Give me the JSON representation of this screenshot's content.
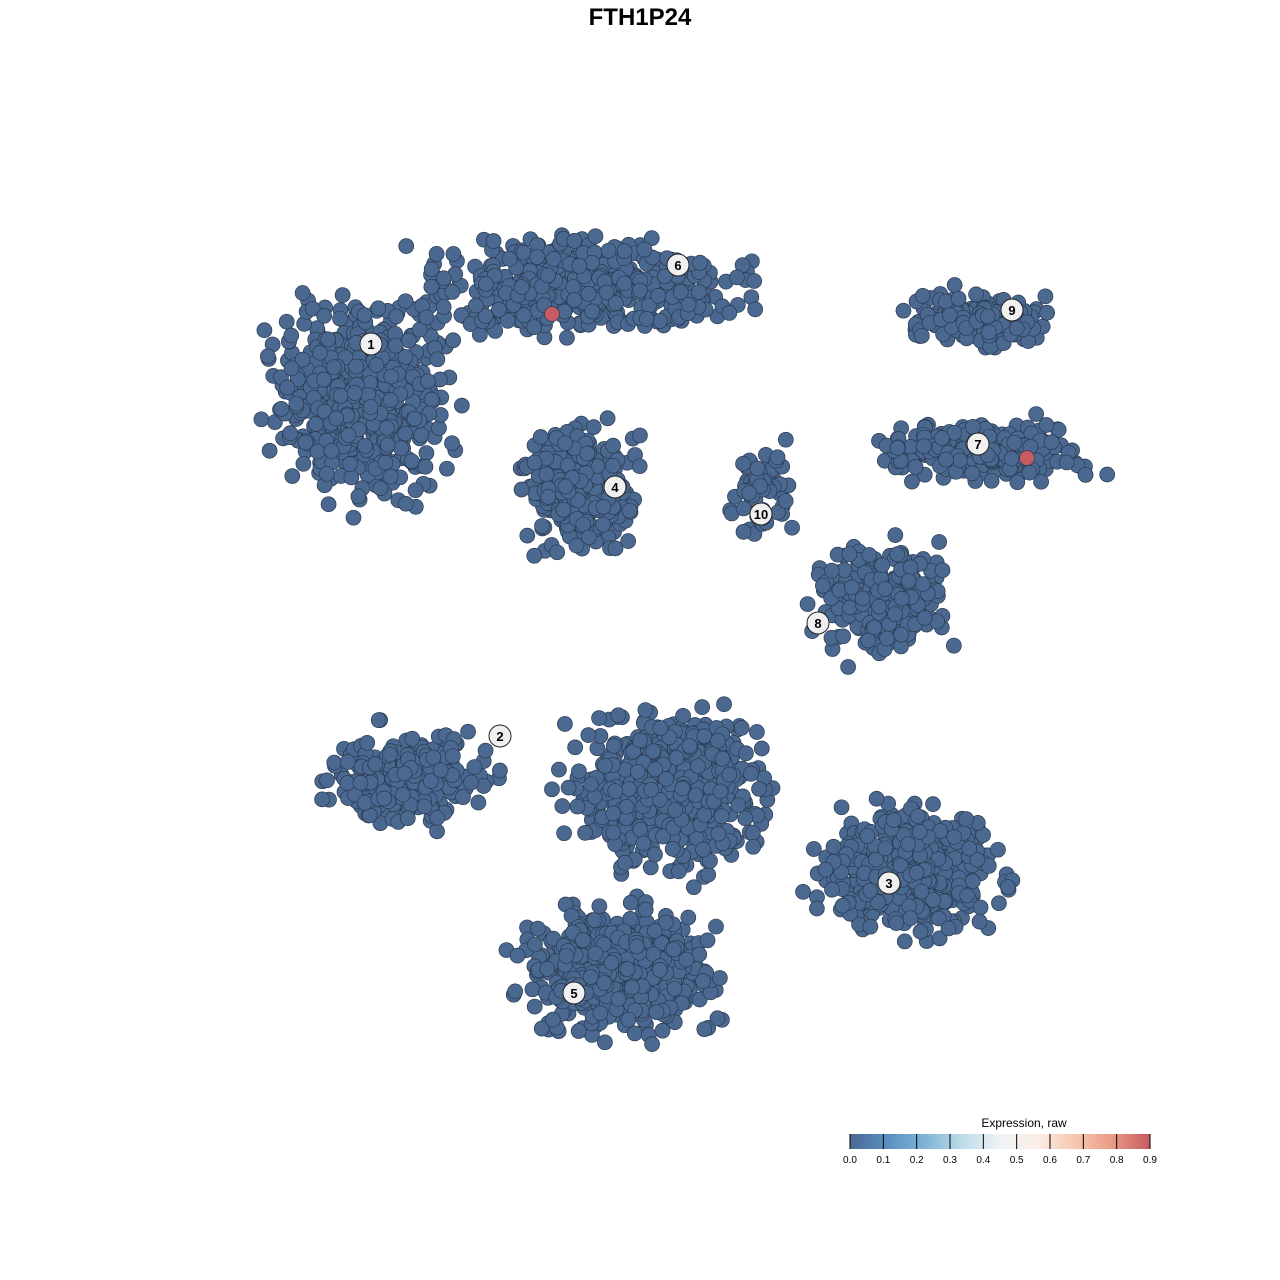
{
  "chart_data": {
    "type": "scatter",
    "title": "FTH1P24",
    "xlabel": "",
    "ylabel": "",
    "xlim": [
      -45,
      50
    ],
    "ylim": [
      -46,
      46
    ],
    "grid": false,
    "point_color_default": "#4a6890",
    "cell_groups": [
      {
        "label": "1",
        "center": [
          -28,
          24
        ],
        "spread": [
          11,
          12
        ],
        "n": 650,
        "label_pos": [
          -26.9,
          29.6
        ]
      },
      {
        "label": "6",
        "center": [
          -6,
          35.5
        ],
        "spread": [
          20,
          6
        ],
        "n": 550,
        "label_pos": [
          3.8,
          37.5
        ]
      },
      {
        "label": "4",
        "center": [
          -6,
          15
        ],
        "spread": [
          7,
          8
        ],
        "n": 330,
        "label_pos": [
          -2.5,
          15.3
        ]
      },
      {
        "label": "10",
        "center": [
          12,
          15
        ],
        "spread": [
          4,
          6
        ],
        "n": 70,
        "label_pos": [
          12.1,
          12.6
        ]
      },
      {
        "label": "9",
        "center": [
          34,
          32
        ],
        "spread": [
          10,
          4
        ],
        "n": 160,
        "label_pos": [
          37.2,
          33
        ]
      },
      {
        "label": "7",
        "center": [
          34,
          19
        ],
        "spread": [
          14,
          4
        ],
        "n": 260,
        "label_pos": [
          33.8,
          19.6
        ]
      },
      {
        "label": "8",
        "center": [
          24,
          4
        ],
        "spread": [
          8,
          7
        ],
        "n": 260,
        "label_pos": [
          17.8,
          1.7
        ]
      },
      {
        "label": "2",
        "center": [
          -23,
          -14
        ],
        "spread": [
          10,
          6
        ],
        "n": 300,
        "label_pos": [
          -14,
          -9.6
        ]
      },
      {
        "label": "5",
        "center": [
          -2,
          -33
        ],
        "spread": [
          12,
          8
        ],
        "n": 600,
        "label_pos": [
          -6.6,
          -35.3
        ]
      },
      {
        "label": "3",
        "center": [
          27,
          -23
        ],
        "spread": [
          12,
          8
        ],
        "n": 520,
        "label_pos": [
          24.9,
          -24.3
        ]
      },
      {
        "label": "",
        "center": [
          3,
          -15
        ],
        "spread": [
          12,
          10
        ],
        "n": 650,
        "label_pos": null
      }
    ],
    "highlighted_points": [
      {
        "x": -8.8,
        "y": 32.6,
        "value": 0.9
      },
      {
        "x": 38.7,
        "y": 18.2,
        "value": 0.9
      }
    ],
    "colorbar": {
      "title": "Expression, raw",
      "ticks": [
        "0.0",
        "0.1",
        "0.2",
        "0.3",
        "0.4",
        "0.5",
        "0.6",
        "0.7",
        "0.8",
        "0.9"
      ],
      "range": [
        0,
        0.9
      ],
      "colors": [
        "#4a6890",
        "#5b8fc4",
        "#7fb4d6",
        "#bedbe8",
        "#eef3f6",
        "#fbeee6",
        "#f7c6ae",
        "#e99a84",
        "#c85a62"
      ]
    }
  }
}
